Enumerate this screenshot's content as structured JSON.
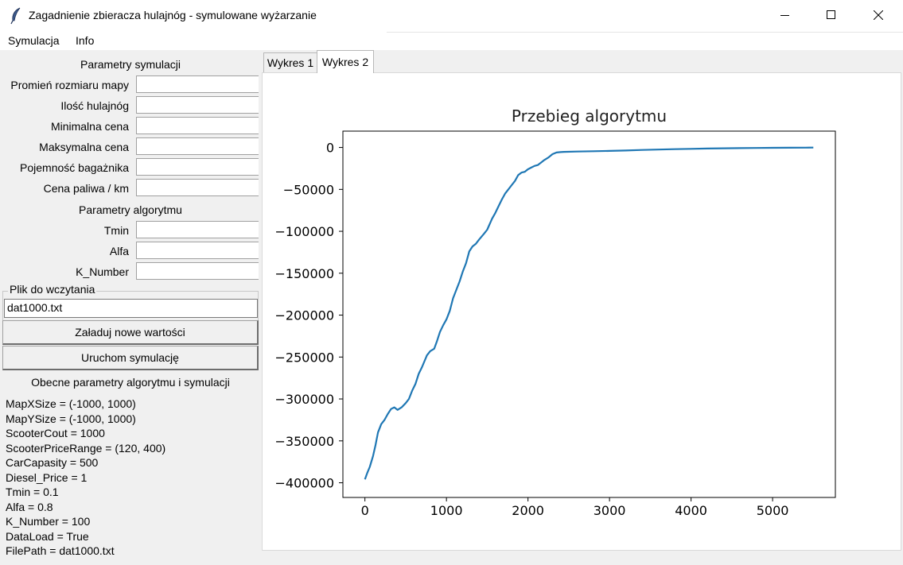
{
  "window": {
    "title": "Zagadnienie zbieracza hulajnóg - symulowane wyżarzanie",
    "icon": "feather-icon",
    "controls": [
      "minimize-icon",
      "maximize-icon",
      "close-icon"
    ]
  },
  "menu": {
    "items": [
      "Symulacja",
      "Info"
    ]
  },
  "sim_params": {
    "title": "Parametry symulacji",
    "fields": [
      {
        "label": "Promień rozmiaru mapy",
        "value": ""
      },
      {
        "label": "Ilość hulajnóg",
        "value": ""
      },
      {
        "label": "Minimalna cena",
        "value": ""
      },
      {
        "label": "Maksymalna cena",
        "value": ""
      },
      {
        "label": "Pojemność bagażnika",
        "value": ""
      },
      {
        "label": "Cena paliwa / km",
        "value": ""
      }
    ]
  },
  "alg_params": {
    "title": "Parametry algorytmu",
    "fields": [
      {
        "label": "Tmin",
        "value": ""
      },
      {
        "label": "Alfa",
        "value": ""
      },
      {
        "label": "K_Number",
        "value": ""
      }
    ]
  },
  "file": {
    "legend": "Plik do wczytania",
    "value": "dat1000.txt"
  },
  "buttons": {
    "load": "Załaduj nowe wartości",
    "run": "Uruchom symulację"
  },
  "current": {
    "title": "Obecne parametry algorytmu i symulacji",
    "lines": [
      "MapXSize = (-1000, 1000)",
      "MapYSize = (-1000, 1000)",
      "ScooterCout = 1000",
      "ScooterPriceRange = (120, 400)",
      "CarCapasity = 500",
      "Diesel_Price = 1",
      "Tmin = 0.1",
      "Alfa = 0.8",
      "K_Number = 100",
      "DataLoad = True",
      "FilePath = dat1000.txt"
    ]
  },
  "tabs": [
    {
      "label": "Wykres 1",
      "active": false
    },
    {
      "label": "Wykres 2",
      "active": true
    }
  ],
  "chart_data": {
    "type": "line",
    "title": "Przebieg algorytmu",
    "xlabel": "",
    "ylabel": "",
    "xlim": [
      -270,
      5770
    ],
    "ylim": [
      -417500,
      19500
    ],
    "xticks": [
      0,
      1000,
      2000,
      3000,
      4000,
      5000
    ],
    "yticks": [
      0,
      -50000,
      -100000,
      -150000,
      -200000,
      -250000,
      -300000,
      -350000,
      -400000
    ],
    "ytick_labels": [
      "0",
      "−50000",
      "−100000",
      "−150000",
      "−200000",
      "−250000",
      "−300000",
      "−350000",
      "−400000"
    ],
    "grid": false,
    "color": "#1f77b4",
    "series": [
      {
        "x": [
          0,
          30,
          60,
          100,
          130,
          160,
          200,
          240,
          280,
          320,
          360,
          400,
          450,
          500,
          540,
          580,
          620,
          660,
          700,
          760,
          800,
          850,
          880,
          920,
          960,
          1000,
          1040,
          1080,
          1120,
          1160,
          1200,
          1240,
          1280,
          1320,
          1360,
          1400,
          1460,
          1500,
          1560,
          1600,
          1640,
          1680,
          1720,
          1760,
          1800,
          1840,
          1880,
          1920,
          1960,
          2000,
          2040,
          2080,
          2120,
          2160,
          2200,
          2250,
          2300,
          2350,
          2400,
          2440,
          2600,
          2800,
          3000,
          3200,
          3400,
          3600,
          3800,
          4000,
          4200,
          4400,
          4600,
          4800,
          5000,
          5200,
          5400,
          5500
        ],
        "y": [
          -396000,
          -388000,
          -381000,
          -368000,
          -355000,
          -340000,
          -330000,
          -325000,
          -318000,
          -312000,
          -310000,
          -313000,
          -310000,
          -305000,
          -300000,
          -290000,
          -282000,
          -270000,
          -262000,
          -248000,
          -243000,
          -240000,
          -232000,
          -220000,
          -212000,
          -205000,
          -195000,
          -180000,
          -170000,
          -160000,
          -148000,
          -138000,
          -124000,
          -118000,
          -115000,
          -110000,
          -103000,
          -98000,
          -85000,
          -78000,
          -70000,
          -62000,
          -55000,
          -50000,
          -45000,
          -40000,
          -33000,
          -30000,
          -29000,
          -26000,
          -24000,
          -22000,
          -21000,
          -18000,
          -15000,
          -12000,
          -8000,
          -6000,
          -5500,
          -5200,
          -4900,
          -4500,
          -4100,
          -3600,
          -3000,
          -2500,
          -2000,
          -1600,
          -1300,
          -1000,
          -800,
          -600,
          -400,
          -300,
          -200,
          -150
        ]
      }
    ]
  }
}
